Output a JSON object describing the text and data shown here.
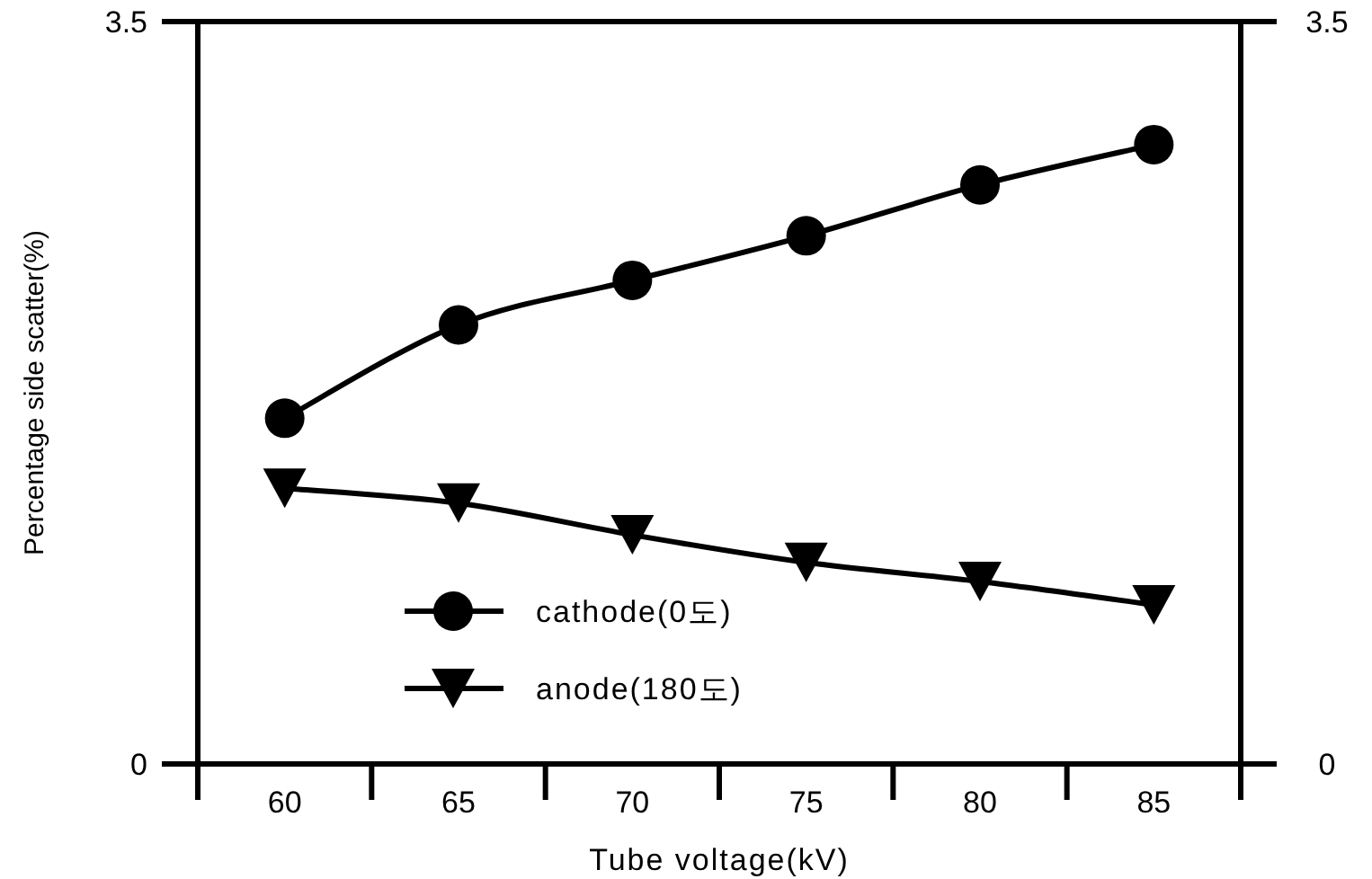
{
  "chart_data": {
    "type": "line",
    "xlabel": "Tube voltage(kV)",
    "ylabel": "Percentage side scatter(%)",
    "categories": [
      "60",
      "65",
      "70",
      "75",
      "80",
      "85"
    ],
    "series": [
      {
        "name": "cathode(0도)",
        "color": "#000000",
        "marker": "circle",
        "values": [
          1.63,
          2.07,
          2.28,
          2.49,
          2.73,
          2.92
        ]
      },
      {
        "name": "anode(180도)",
        "color": "#000000",
        "marker": "triangle",
        "values": [
          1.3,
          1.23,
          1.08,
          0.95,
          0.86,
          0.75
        ]
      }
    ],
    "ylim": [
      0,
      3.5
    ],
    "yticks": [
      0,
      3.5
    ],
    "y2lim": [
      0,
      3.5
    ],
    "y2ticks": [
      0,
      3.5
    ],
    "grid": false,
    "legend": "bottom",
    "line_style": "solid"
  }
}
